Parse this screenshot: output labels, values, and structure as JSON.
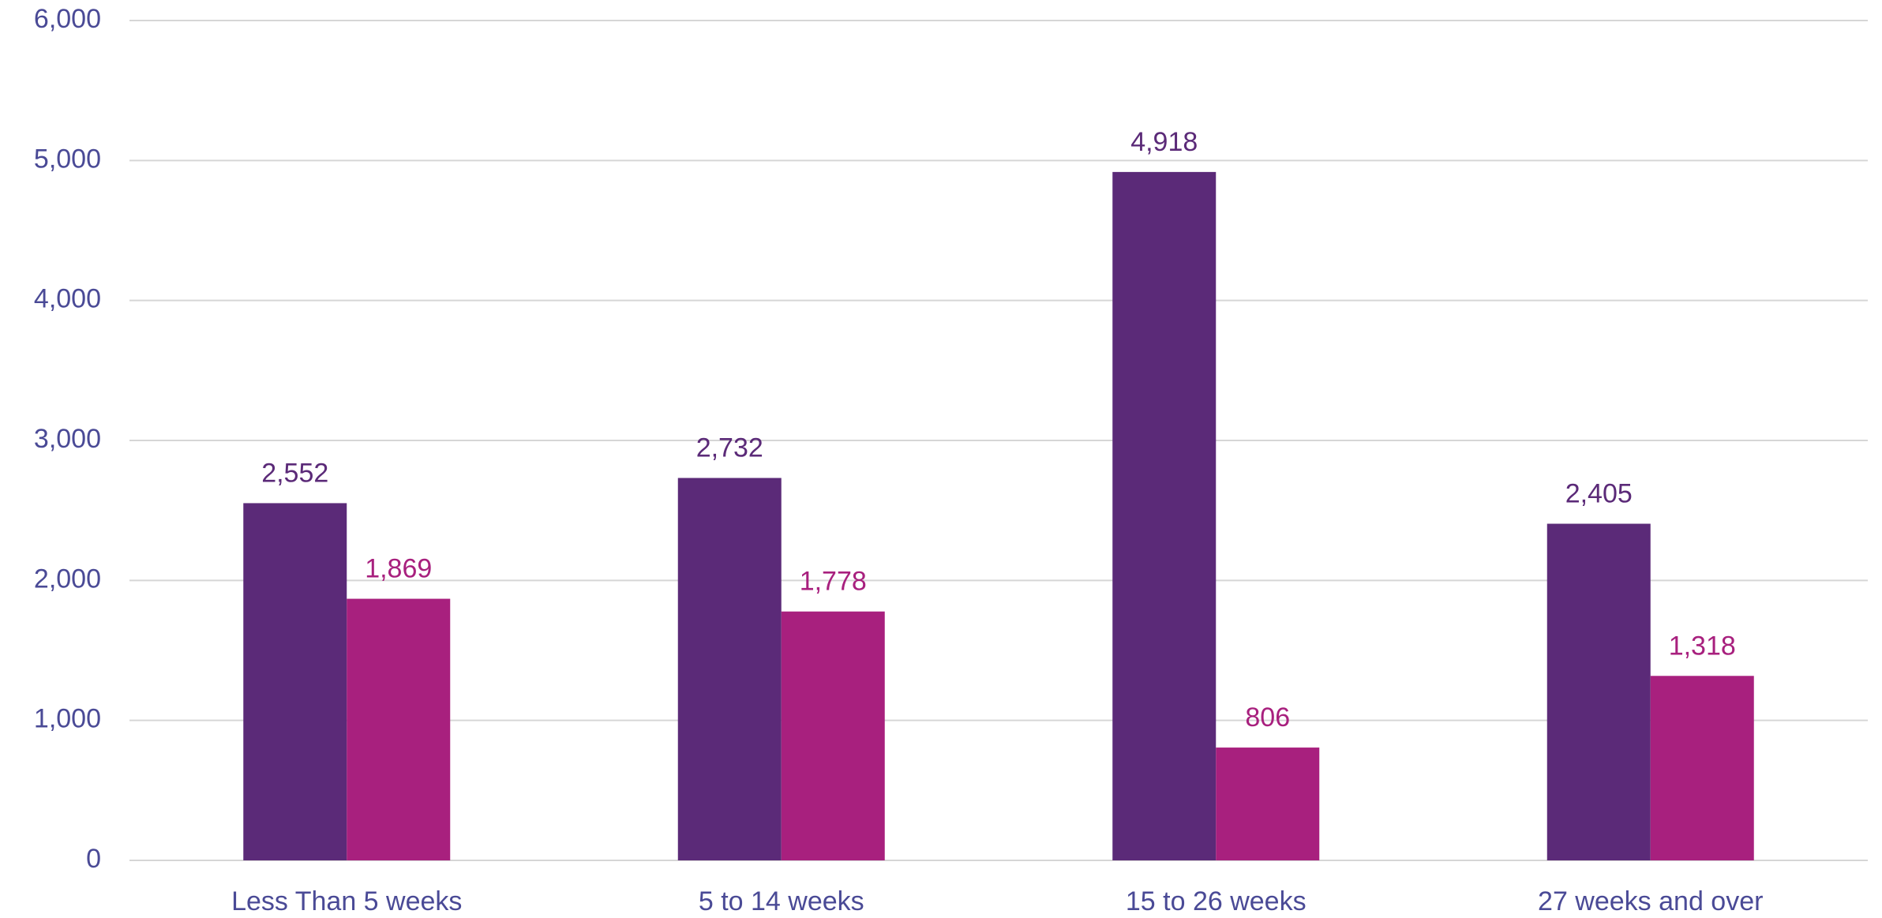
{
  "chart_data": {
    "type": "bar",
    "categories": [
      "Less Than 5 weeks",
      "5 to 14 weeks",
      "15 to 26 weeks",
      "27 weeks and over"
    ],
    "series": [
      {
        "color": "#5b2a78",
        "values": [
          2552,
          2732,
          4918,
          2405
        ],
        "value_labels": [
          "2,552",
          "2,732",
          "4,918",
          "2,405"
        ]
      },
      {
        "color": "#a8207e",
        "values": [
          1869,
          1778,
          806,
          1318
        ],
        "value_labels": [
          "1,869",
          "1,778",
          "806",
          "1,318"
        ]
      }
    ],
    "ylim": [
      0,
      6000
    ],
    "yticks": [
      0,
      {
        "value": 1000,
        "label": "1,000"
      },
      {
        "value": 2000,
        "label": "2,000"
      },
      {
        "value": 3000,
        "label": "3,000"
      },
      {
        "value": 4000,
        "label": "4,000"
      },
      {
        "value": 5000,
        "label": "5,000"
      },
      {
        "value": 6000,
        "label": "6,000"
      }
    ],
    "grid": true
  }
}
